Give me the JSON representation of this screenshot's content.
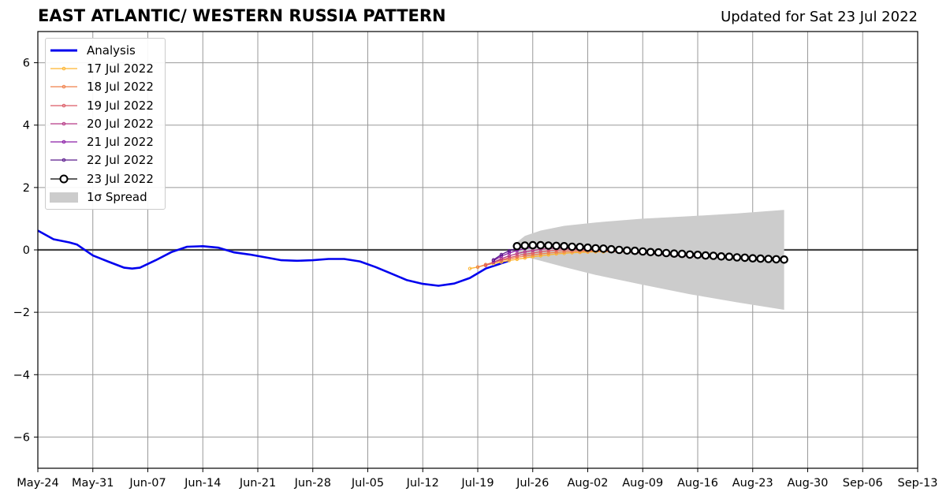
{
  "header": {
    "title": "EAST ATLANTIC/ WESTERN RUSSIA PATTERN",
    "updated": "Updated for Sat 23 Jul 2022"
  },
  "chart_data": {
    "type": "line",
    "title": "EAST ATLANTIC/ WESTERN RUSSIA PATTERN",
    "subtitle": "Updated for Sat 23 Jul 2022",
    "xlabel": "",
    "ylabel": "",
    "x_range": [
      "2022-05-24",
      "2022-09-13"
    ],
    "ylim": [
      -7,
      7
    ],
    "grid": true,
    "legend_position": "top-left",
    "x_ticks": [
      "May-24",
      "May-31",
      "Jun-07",
      "Jun-14",
      "Jun-21",
      "Jun-28",
      "Jul-05",
      "Jul-12",
      "Jul-19",
      "Jul-26",
      "Aug-02",
      "Aug-09",
      "Aug-16",
      "Aug-23",
      "Aug-30",
      "Sep-06",
      "Sep-13"
    ],
    "y_ticks": [
      "−6",
      "−4",
      "−2",
      "0",
      "2",
      "4",
      "6"
    ],
    "y_tick_values": [
      -6,
      -4,
      -2,
      0,
      2,
      4,
      6
    ],
    "analysis": {
      "name": "Analysis",
      "color": "#0000ee",
      "points": [
        [
          "2022-05-24",
          0.62
        ],
        [
          "2022-05-26",
          0.34
        ],
        [
          "2022-05-28",
          0.24
        ],
        [
          "2022-05-29",
          0.17
        ],
        [
          "2022-05-31",
          -0.18
        ],
        [
          "2022-06-02",
          -0.38
        ],
        [
          "2022-06-04",
          -0.57
        ],
        [
          "2022-06-05",
          -0.6
        ],
        [
          "2022-06-06",
          -0.57
        ],
        [
          "2022-06-08",
          -0.33
        ],
        [
          "2022-06-10",
          -0.07
        ],
        [
          "2022-06-12",
          0.1
        ],
        [
          "2022-06-14",
          0.12
        ],
        [
          "2022-06-16",
          0.07
        ],
        [
          "2022-06-18",
          -0.08
        ],
        [
          "2022-06-20",
          -0.15
        ],
        [
          "2022-06-22",
          -0.24
        ],
        [
          "2022-06-24",
          -0.33
        ],
        [
          "2022-06-26",
          -0.35
        ],
        [
          "2022-06-28",
          -0.33
        ],
        [
          "2022-06-30",
          -0.29
        ],
        [
          "2022-07-02",
          -0.29
        ],
        [
          "2022-07-04",
          -0.37
        ],
        [
          "2022-07-06",
          -0.55
        ],
        [
          "2022-07-08",
          -0.76
        ],
        [
          "2022-07-10",
          -0.97
        ],
        [
          "2022-07-12",
          -1.09
        ],
        [
          "2022-07-14",
          -1.15
        ],
        [
          "2022-07-16",
          -1.08
        ],
        [
          "2022-07-18",
          -0.9
        ],
        [
          "2022-07-20",
          -0.6
        ],
        [
          "2022-07-23",
          -0.35
        ]
      ]
    },
    "forecasts": [
      {
        "name": "17 Jul 2022",
        "color": "#fdb42f",
        "start": "2022-07-18",
        "values": [
          -0.6,
          -0.55,
          -0.49,
          -0.44,
          -0.39,
          -0.34,
          -0.3,
          -0.26,
          -0.22,
          -0.19,
          -0.16,
          -0.13,
          -0.11,
          -0.09,
          -0.08,
          -0.07,
          -0.06,
          -0.06,
          -0.05
        ]
      },
      {
        "name": "18 Jul 2022",
        "color": "#f0804a",
        "start": "2022-07-19",
        "values": [
          -0.55,
          -0.47,
          -0.4,
          -0.34,
          -0.29,
          -0.24,
          -0.2,
          -0.16,
          -0.13,
          -0.1,
          -0.08,
          -0.06,
          -0.05,
          -0.04,
          -0.04,
          -0.04,
          -0.04,
          -0.05,
          -0.06,
          -0.07,
          -0.08
        ]
      },
      {
        "name": "19 Jul 2022",
        "color": "#dc5b66",
        "start": "2022-07-20",
        "values": [
          -0.5,
          -0.4,
          -0.32,
          -0.25,
          -0.19,
          -0.14,
          -0.1,
          -0.06,
          -0.03,
          -0.01,
          0.0,
          0.0,
          0.0,
          -0.01,
          -0.02,
          -0.03,
          -0.04,
          -0.05,
          -0.06,
          -0.08,
          -0.09,
          -0.1,
          -0.11,
          -0.12,
          -0.13,
          -0.14,
          -0.15,
          -0.16,
          -0.17,
          -0.18,
          -0.19,
          -0.2,
          -0.21,
          -0.22,
          -0.23
        ]
      },
      {
        "name": "20 Jul 2022",
        "color": "#b63a86",
        "start": "2022-07-21",
        "values": [
          -0.4,
          -0.28,
          -0.19,
          -0.12,
          -0.06,
          -0.02,
          0.02,
          0.04,
          0.05,
          0.05,
          0.04,
          0.03,
          0.02,
          0.01,
          0.0,
          -0.02,
          -0.04,
          -0.06,
          -0.08,
          -0.1,
          -0.12,
          -0.14,
          -0.16,
          -0.18,
          -0.19,
          -0.2,
          -0.21,
          -0.22,
          -0.23,
          -0.24
        ]
      },
      {
        "name": "21 Jul 2022",
        "color": "#8a1da6",
        "start": "2022-07-21",
        "values": [
          -0.35,
          -0.2,
          -0.1,
          -0.02,
          0.04,
          0.08,
          0.1,
          0.11,
          0.11,
          0.1,
          0.08,
          0.06,
          0.04,
          0.02,
          0.0,
          -0.02,
          -0.04
        ]
      },
      {
        "name": "22 Jul 2022",
        "color": "#5a1a8c",
        "start": "2022-07-21",
        "values": [
          -0.32,
          -0.15,
          -0.03,
          0.05,
          0.1,
          0.13,
          0.14,
          0.14,
          0.13,
          0.12,
          0.1
        ]
      },
      {
        "name": "23 Jul 2022",
        "color": "#000000",
        "start": "2022-07-24",
        "values": [
          0.12,
          0.14,
          0.15,
          0.15,
          0.14,
          0.13,
          0.12,
          0.1,
          0.09,
          0.07,
          0.05,
          0.04,
          0.02,
          0.0,
          -0.02,
          -0.03,
          -0.05,
          -0.07,
          -0.08,
          -0.1,
          -0.12,
          -0.13,
          -0.15,
          -0.16,
          -0.18,
          -0.19,
          -0.21,
          -0.22,
          -0.24,
          -0.25,
          -0.27,
          -0.28,
          -0.29,
          -0.3,
          -0.31
        ]
      }
    ],
    "spread": {
      "name": "1σ Spread",
      "color": "#cccccc",
      "start": "2022-07-24",
      "end": "2022-08-27",
      "upper": [
        [
          "2022-07-24",
          0.25
        ],
        [
          "2022-07-25",
          0.45
        ],
        [
          "2022-07-27",
          0.62
        ],
        [
          "2022-07-30",
          0.77
        ],
        [
          "2022-08-03",
          0.88
        ],
        [
          "2022-08-09",
          1.0
        ],
        [
          "2022-08-15",
          1.08
        ],
        [
          "2022-08-21",
          1.17
        ],
        [
          "2022-08-27",
          1.28
        ]
      ],
      "lower": [
        [
          "2022-07-24",
          -0.1
        ],
        [
          "2022-07-25",
          -0.22
        ],
        [
          "2022-07-27",
          -0.35
        ],
        [
          "2022-07-30",
          -0.55
        ],
        [
          "2022-08-03",
          -0.8
        ],
        [
          "2022-08-09",
          -1.12
        ],
        [
          "2022-08-15",
          -1.42
        ],
        [
          "2022-08-21",
          -1.68
        ],
        [
          "2022-08-27",
          -1.92
        ]
      ]
    }
  },
  "legend": {
    "items": [
      {
        "label": "Analysis",
        "color": "#0000ee",
        "style": "thick"
      },
      {
        "label": "17 Jul 2022",
        "color": "#fdb42f",
        "style": "dot"
      },
      {
        "label": "18 Jul 2022",
        "color": "#f0804a",
        "style": "dot"
      },
      {
        "label": "19 Jul 2022",
        "color": "#dc5b66",
        "style": "dot"
      },
      {
        "label": "20 Jul 2022",
        "color": "#b63a86",
        "style": "dot"
      },
      {
        "label": "21 Jul 2022",
        "color": "#8a1da6",
        "style": "dot"
      },
      {
        "label": "22 Jul 2022",
        "color": "#5a1a8c",
        "style": "dot"
      },
      {
        "label": "23 Jul 2022",
        "color": "#000000",
        "style": "circle"
      },
      {
        "label": "1σ Spread",
        "color": "#cccccc",
        "style": "patch"
      }
    ]
  }
}
